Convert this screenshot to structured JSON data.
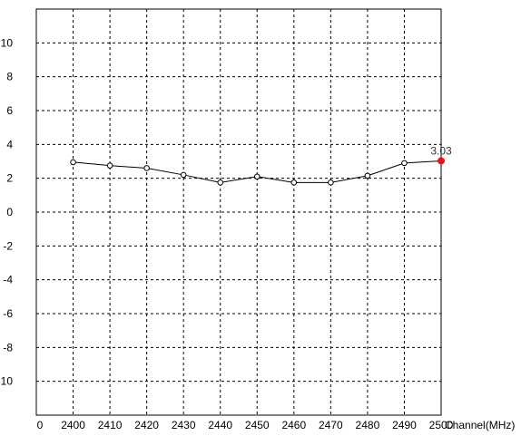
{
  "chart_data": {
    "type": "line",
    "title": "",
    "xlabel": "Channel(MHz)",
    "ylabel": "",
    "x_origin_label": "0",
    "x_ticks": [
      2400,
      2410,
      2420,
      2430,
      2440,
      2450,
      2460,
      2470,
      2480,
      2490,
      2500
    ],
    "y_tick_labels": [
      "10",
      "8",
      "6",
      "4",
      "2",
      "0",
      "-2",
      "-4",
      "-6",
      "-8",
      "-10"
    ],
    "y_tick_values": [
      10,
      8,
      6,
      4,
      2,
      0,
      -2,
      -4,
      -6,
      -8,
      -10
    ],
    "xlim": [
      2390,
      2500
    ],
    "ylim": [
      -12,
      12
    ],
    "grid": true,
    "series": [
      {
        "x": [
          2400,
          2410,
          2420,
          2430,
          2440,
          2450,
          2460,
          2470,
          2480,
          2490,
          2500
        ],
        "y": [
          2.95,
          2.75,
          2.6,
          2.2,
          1.75,
          2.1,
          1.75,
          1.75,
          2.15,
          2.9,
          3.03
        ],
        "color": "#000000",
        "marker": "hollow-circle"
      }
    ],
    "highlight": {
      "x": 2500,
      "y": 3.03,
      "label": "3.03",
      "color": "#e8141c"
    }
  }
}
